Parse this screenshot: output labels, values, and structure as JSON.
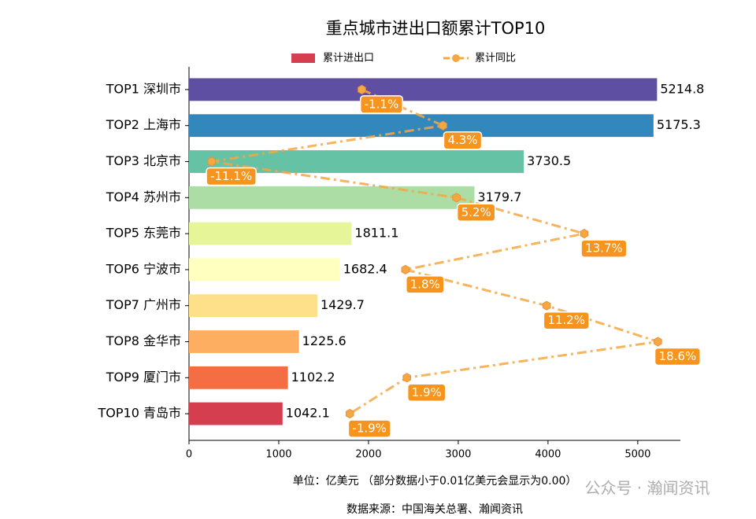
{
  "chart_data": {
    "type": "bar",
    "orientation": "horizontal",
    "title": "重点城市进出口额累计TOP10",
    "categories": [
      "TOP1 深圳市",
      "TOP2 上海市",
      "TOP3 北京市",
      "TOP4 苏州市",
      "TOP5 东莞市",
      "TOP6 宁波市",
      "TOP7 广州市",
      "TOP8 金华市",
      "TOP9 厦门市",
      "TOP10 青岛市"
    ],
    "series": [
      {
        "name": "累计进出口",
        "type": "bar",
        "color": "#d53e4f",
        "colors": [
          "#5e4fa2",
          "#3288bd",
          "#66c2a5",
          "#abdda4",
          "#e6f598",
          "#ffffbf",
          "#fee08b",
          "#fdae61",
          "#f46d43",
          "#d53e4f"
        ],
        "values": [
          5214.8,
          5175.3,
          3730.5,
          3179.7,
          1811.1,
          1682.4,
          1429.7,
          1225.6,
          1102.2,
          1042.1
        ]
      },
      {
        "name": "累计同比",
        "type": "line",
        "axis": "x2",
        "color": "#f5a742",
        "label_color": "#f7941d",
        "values": [
          -1.1,
          4.3,
          -11.1,
          5.2,
          13.7,
          1.8,
          11.2,
          18.6,
          1.9,
          -1.9
        ],
        "value_labels": [
          "-1.1%",
          "4.3%",
          "-11.1%",
          "5.2%",
          "13.7%",
          "1.8%",
          "11.2%",
          "18.6%",
          "1.9%",
          "-1.9%"
        ]
      }
    ],
    "xlim": [
      0,
      5475
    ],
    "xticks": [
      0,
      1000,
      2000,
      3000,
      4000,
      5000
    ],
    "x2lim": [
      -12.6,
      20.1
    ],
    "grid": false,
    "legend": "top",
    "notes": [
      "单位：亿美元  （部分数据小于0.01亿美元会显示为0.00）",
      "数据来源：中国海关总署、瀚闻资讯"
    ],
    "watermark": "公众号 · 瀚闻资讯"
  }
}
